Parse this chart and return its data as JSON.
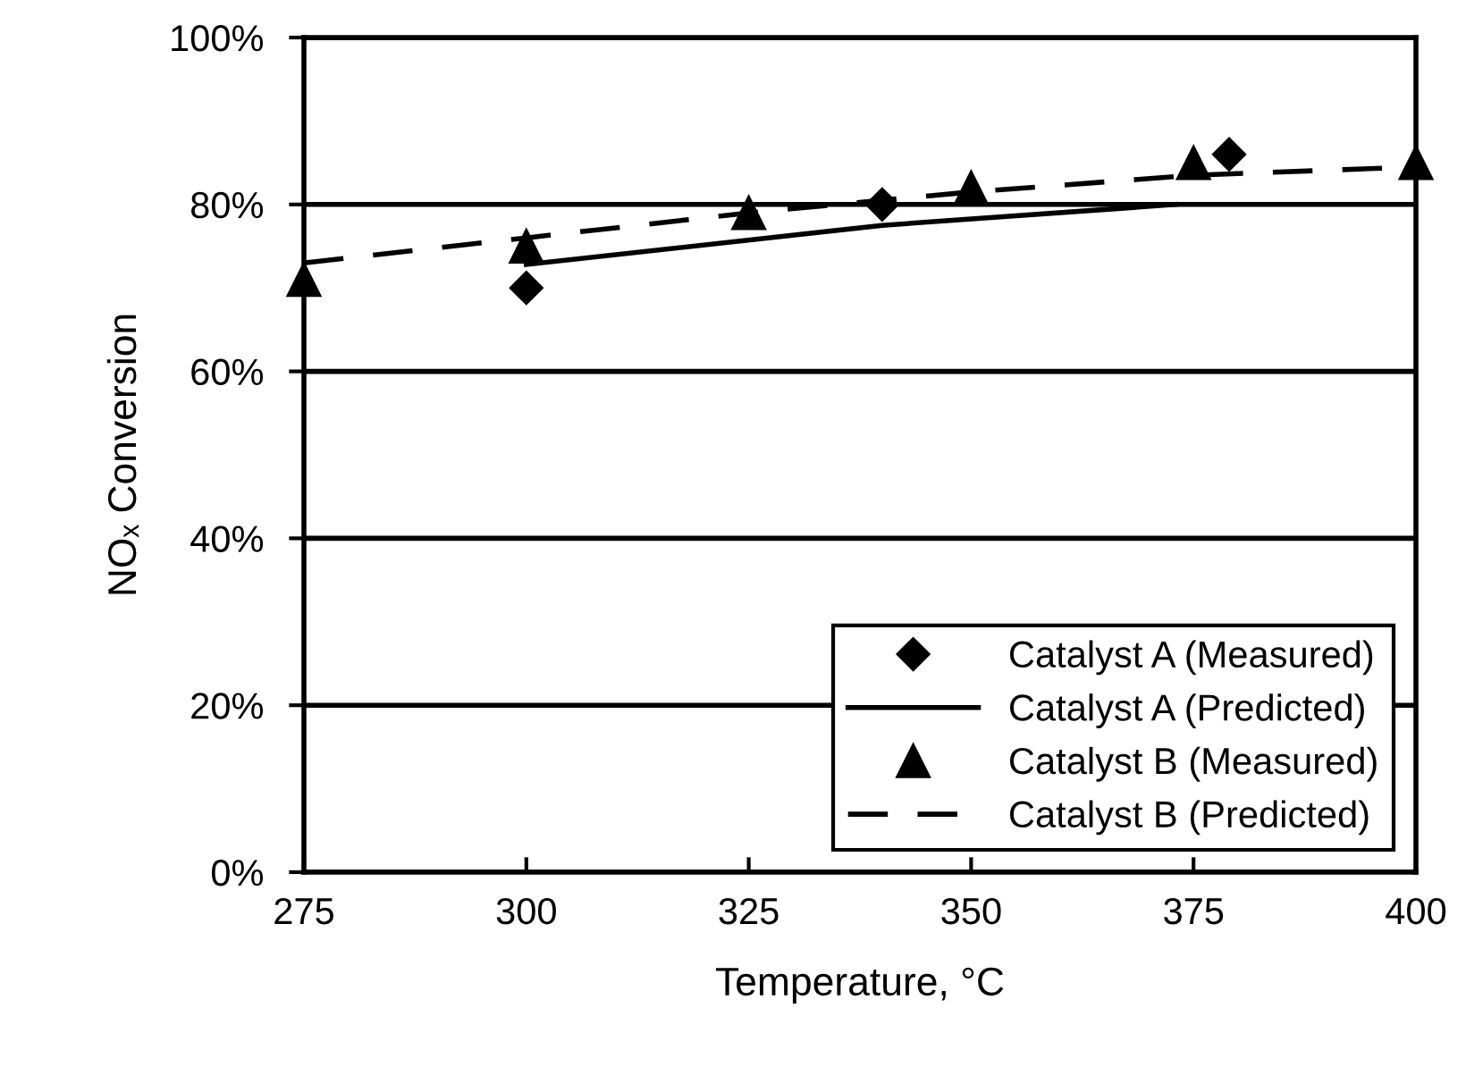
{
  "chart_data": {
    "type": "line",
    "xlabel": "Temperature, °C",
    "ylabel": "NOₓ Conversion",
    "xlim": [
      275,
      400
    ],
    "xticks": [
      275,
      300,
      325,
      350,
      375,
      400
    ],
    "ylim": [
      0,
      100
    ],
    "yticks": [
      {
        "value": 0,
        "label": "0%"
      },
      {
        "value": 20,
        "label": "20%"
      },
      {
        "value": 40,
        "label": "40%"
      },
      {
        "value": 60,
        "label": "60%"
      },
      {
        "value": 80,
        "label": "80%"
      },
      {
        "value": 100,
        "label": "100%"
      }
    ],
    "grid": "y",
    "legend": "bottom right",
    "series": [
      {
        "name": "Catalyst A (Measured)",
        "type": "scatter",
        "marker": "diamond",
        "color": "#000000",
        "x": [
          300,
          340,
          379
        ],
        "values": [
          70,
          80,
          86
        ]
      },
      {
        "name": "Catalyst A (Predicted)",
        "line_style": "solid",
        "color": "#000000",
        "x": [
          300,
          340,
          373
        ],
        "values": [
          72.8,
          77.5,
          80
        ]
      },
      {
        "name": "Catalyst B (Measured)",
        "type": "scatter",
        "marker": "triangle",
        "color": "#000000",
        "x": [
          275,
          300,
          325,
          350,
          375,
          400
        ],
        "values": [
          71,
          75,
          79,
          82,
          85,
          85
        ]
      },
      {
        "name": "Catalyst B (Predicted)",
        "line_style": "dashed",
        "color": "#000000",
        "x": [
          275,
          300,
          325,
          350,
          375,
          400
        ],
        "values": [
          73,
          76,
          79,
          81.5,
          83.5,
          84.5
        ]
      }
    ]
  }
}
